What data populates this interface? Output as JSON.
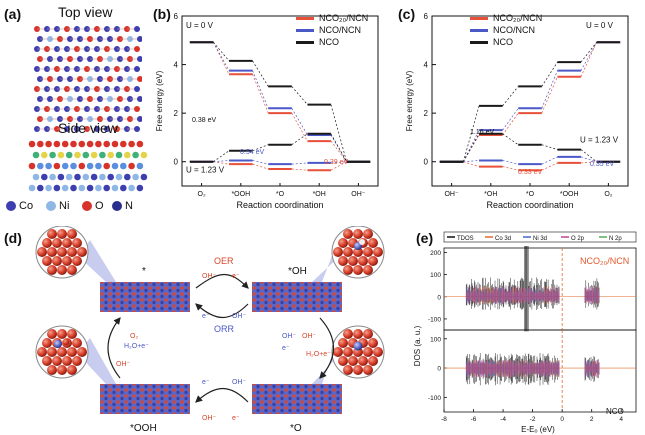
{
  "figure": {
    "panel_a": {
      "label": "(a)",
      "top_view": "Top view",
      "side_view": "Side view",
      "legend": [
        {
          "symbol": "Co",
          "color": "#3d3fb0"
        },
        {
          "symbol": "Ni",
          "color": "#8fb7e6"
        },
        {
          "symbol": "O",
          "color": "#d8332a"
        },
        {
          "symbol": "N",
          "color": "#2a2f8c"
        }
      ]
    },
    "panel_b": {
      "label": "(b)",
      "u0": "U = 0 V",
      "u123": "U = 1.23 V",
      "ann_1": "0.38 eV",
      "ann_2": "0.54 eV",
      "ann_3": "0.39 eV",
      "legend": [
        "NCO₂₀/NCN",
        "NCO/NCN",
        "NCO"
      ]
    },
    "panel_c": {
      "label": "(c)",
      "u0": "U = 0 V",
      "u123": "U = 1.23 V",
      "ann_1": "1.16 eV",
      "ann_2": "0.33 eV",
      "ann_3": "0.35 eV",
      "legend": [
        "NCO₂₀/NCN",
        "NCO/NCN",
        "NCO"
      ]
    },
    "panel_d": {
      "label": "(d)",
      "oer": "OER",
      "orr": "ORR",
      "state_star": "*",
      "state_oh": "*OH",
      "state_ooh": "*OOH",
      "state_o": "*O",
      "oh_minus": "OH⁻",
      "e_minus": "e⁻",
      "o2": "O₂",
      "h2o": "H₂O+e⁻"
    },
    "panel_e": {
      "label": "(e)",
      "title_top": "NCO₂₀/NCN",
      "title_bottom": "NCO",
      "legend": [
        "TDOS",
        "Co 3d",
        "Ni 3d",
        "O 2p",
        "N 2p"
      ],
      "legend_colors": [
        "#111111",
        "#e06a2a",
        "#4466cc",
        "#c6448c",
        "#55aa55"
      ],
      "ylabel": "DOS (a. u.)",
      "xlabel": "E-Eₒ (eV)",
      "yticks_top": [
        "200",
        "100",
        "0",
        "-100"
      ],
      "yticks_bottom": [
        "100",
        "0",
        "-100"
      ],
      "xticks": [
        "-8",
        "-6",
        "-4",
        "-2",
        "0",
        "2",
        "4"
      ]
    }
  },
  "chart_data": [
    {
      "type": "line",
      "title": "",
      "xlabel": "Reaction coordination",
      "ylabel": "Free energy (eV)",
      "categories": [
        "O₂",
        "*OOH",
        "*O",
        "*OH",
        "OH⁻"
      ],
      "ylim": [
        -1,
        6
      ],
      "yticks": [
        0,
        2,
        4,
        6
      ],
      "series": [
        {
          "name": "NCO₂₀/NCN",
          "color": "#e8503a",
          "u0": [
            4.92,
            3.6,
            2.0,
            0.85,
            0
          ],
          "u123": [
            0,
            -0.1,
            -0.3,
            -0.35,
            0
          ]
        },
        {
          "name": "NCO/NCN",
          "color": "#4a58c8",
          "u0": [
            4.92,
            3.75,
            2.2,
            1.1,
            0
          ],
          "u123": [
            0,
            0.05,
            -0.1,
            -0.05,
            0
          ]
        },
        {
          "name": "NCO",
          "color": "#1a1a1a",
          "u0": [
            4.92,
            4.15,
            3.1,
            2.35,
            0
          ],
          "u123": [
            0,
            0.45,
            0.7,
            1.15,
            0
          ]
        }
      ]
    },
    {
      "type": "line",
      "title": "",
      "xlabel": "Reaction coordination",
      "ylabel": "Free energy (eV)",
      "categories": [
        "OH⁻",
        "*OH",
        "*O",
        "*OOH",
        "O₂"
      ],
      "ylim": [
        -1,
        6
      ],
      "yticks": [
        0,
        2,
        4,
        6
      ],
      "series": [
        {
          "name": "NCO₂₀/NCN",
          "color": "#e8503a",
          "u0": [
            0,
            1.1,
            2.0,
            3.5,
            4.92
          ],
          "u123": [
            0,
            -0.2,
            -0.35,
            -0.05,
            0
          ]
        },
        {
          "name": "NCO/NCN",
          "color": "#4a58c8",
          "u0": [
            0,
            1.3,
            2.2,
            3.75,
            4.92
          ],
          "u123": [
            0,
            0.05,
            -0.1,
            0.2,
            0
          ]
        },
        {
          "name": "NCO",
          "color": "#1a1a1a",
          "u0": [
            0,
            2.3,
            3.1,
            4.1,
            4.92
          ],
          "u123": [
            0,
            1.15,
            0.7,
            0.5,
            0
          ]
        }
      ]
    }
  ]
}
